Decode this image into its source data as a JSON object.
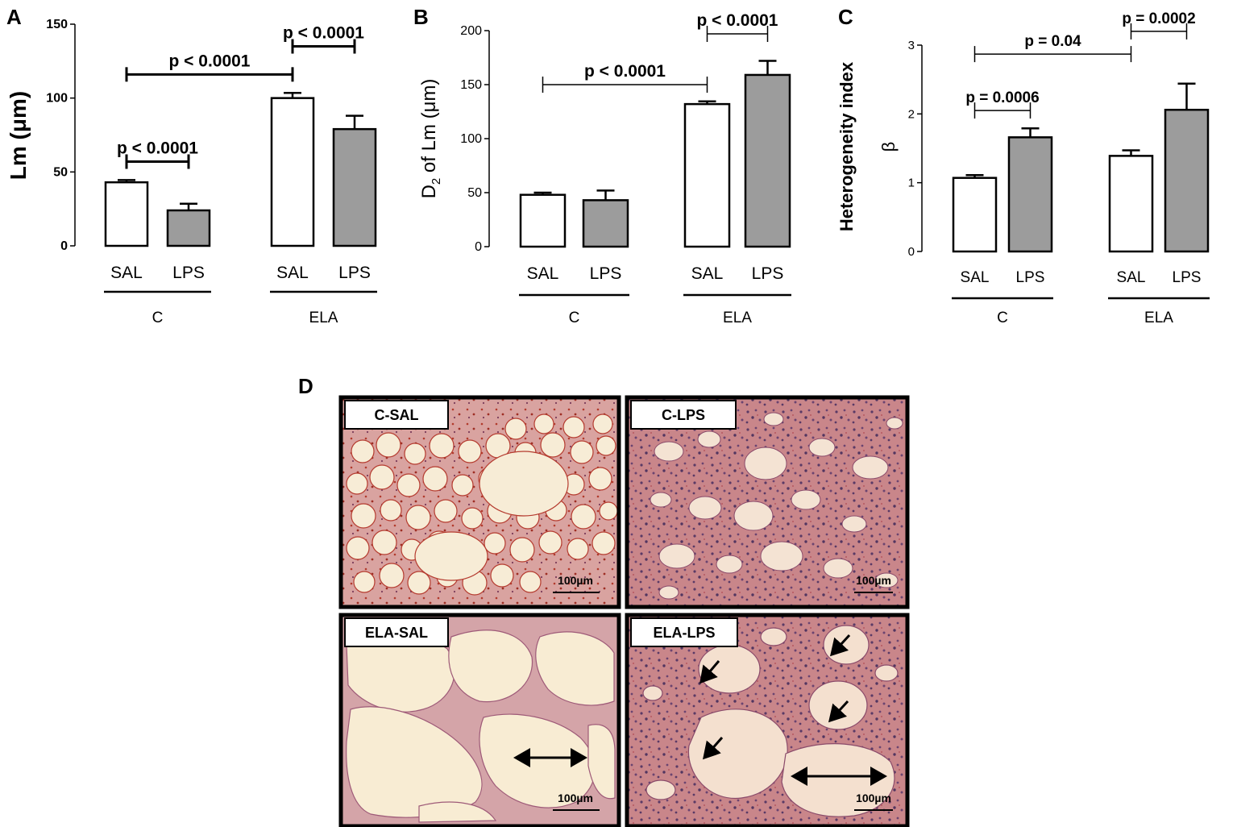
{
  "panels_letters": {
    "A": "A",
    "B": "B",
    "C": "C",
    "D": "D"
  },
  "chart_data": [
    {
      "panel": "A",
      "type": "bar",
      "ylabel": "Lm (μm)",
      "ylim": [
        0,
        150
      ],
      "yticks": [
        0,
        50,
        100,
        150
      ],
      "categories": [
        "SAL",
        "LPS",
        "SAL",
        "LPS"
      ],
      "groups": [
        {
          "label": "C",
          "bars": [
            0,
            1
          ]
        },
        {
          "label": "ELA",
          "bars": [
            2,
            3
          ]
        }
      ],
      "values": [
        43,
        24,
        100,
        79
      ],
      "errors": [
        1.5,
        4.5,
        3.5,
        9
      ],
      "fills": [
        "#ffffff",
        "#9c9c9c",
        "#ffffff",
        "#9c9c9c"
      ],
      "annotations": [
        {
          "text": "p < 0.0001",
          "from": 0,
          "to": 1,
          "y": 57
        },
        {
          "text": "p < 0.0001",
          "from": 0,
          "to": 2,
          "y": 116
        },
        {
          "text": "p < 0.0001",
          "from": 2,
          "to": 3,
          "y": 135
        }
      ]
    },
    {
      "panel": "B",
      "type": "bar",
      "ylabel_main": "D",
      "ylabel_sub": "2",
      "ylabel_rest": " of Lm (μm)",
      "ylim": [
        0,
        200
      ],
      "yticks": [
        0,
        50,
        100,
        150,
        200
      ],
      "categories": [
        "SAL",
        "LPS",
        "SAL",
        "LPS"
      ],
      "groups": [
        {
          "label": "C",
          "bars": [
            0,
            1
          ]
        },
        {
          "label": "ELA",
          "bars": [
            2,
            3
          ]
        }
      ],
      "values": [
        48,
        43,
        132,
        159
      ],
      "errors": [
        2,
        9,
        2.5,
        13
      ],
      "fills": [
        "#ffffff",
        "#9c9c9c",
        "#ffffff",
        "#9c9c9c"
      ],
      "annotations": [
        {
          "text": "p < 0.0001",
          "from": 0,
          "to": 2,
          "y": 150
        },
        {
          "text": "p < 0.0001",
          "from": 2,
          "to": 3,
          "y": 197
        }
      ]
    },
    {
      "panel": "C",
      "type": "bar",
      "ylabel": "Heterogeneity index",
      "ylabel2": "β",
      "ylim": [
        0,
        3
      ],
      "yticks": [
        0,
        1,
        2,
        3
      ],
      "categories": [
        "SAL",
        "LPS",
        "SAL",
        "LPS"
      ],
      "groups": [
        {
          "label": "C",
          "bars": [
            0,
            1
          ]
        },
        {
          "label": "ELA",
          "bars": [
            2,
            3
          ]
        }
      ],
      "values": [
        1.07,
        1.66,
        1.39,
        2.06
      ],
      "errors": [
        0.04,
        0.13,
        0.08,
        0.38
      ],
      "fills": [
        "#ffffff",
        "#9c9c9c",
        "#ffffff",
        "#9c9c9c"
      ],
      "annotations": [
        {
          "text": "p = 0.0006",
          "from": 0,
          "to": 1,
          "y": 2.05
        },
        {
          "text": "p = 0.04",
          "from": 0,
          "to": 2,
          "y": 2.87
        },
        {
          "text": "p = 0.0002",
          "from": 2,
          "to": 3,
          "y": 3.2
        }
      ]
    }
  ],
  "micrographs": [
    {
      "label": "C-SAL",
      "scale": "100µm"
    },
    {
      "label": "C-LPS",
      "scale": "100µm"
    },
    {
      "label": "ELA-SAL",
      "scale": "100µm"
    },
    {
      "label": "ELA-LPS",
      "scale": "100µm"
    }
  ]
}
